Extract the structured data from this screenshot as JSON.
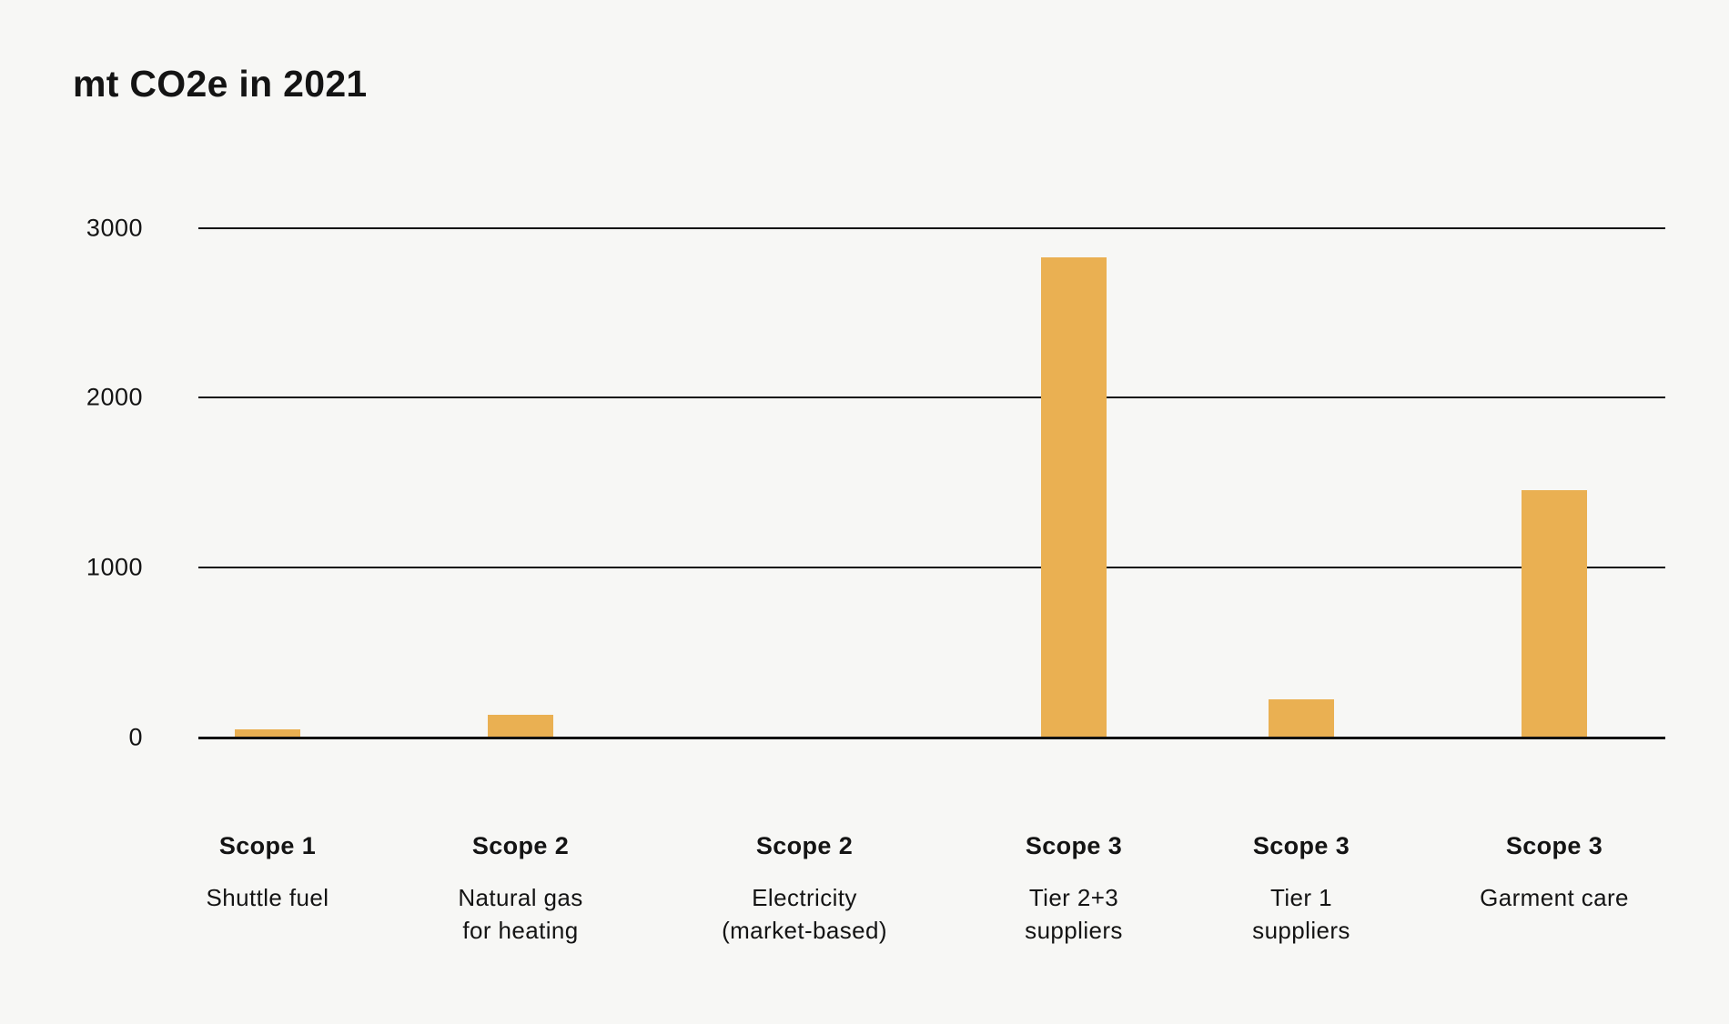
{
  "chart_data": {
    "type": "bar",
    "title": "mt CO2e in 2021",
    "unit": "mt CO2e",
    "year": "2021",
    "categories": [
      {
        "scope": "Scope 1",
        "sublabel_lines": [
          "Shuttle fuel"
        ]
      },
      {
        "scope": "Scope 2",
        "sublabel_lines": [
          "Natural gas",
          "for heating"
        ]
      },
      {
        "scope": "Scope 2",
        "sublabel_lines": [
          "Electricity",
          "(market-based)"
        ]
      },
      {
        "scope": "Scope 3",
        "sublabel_lines": [
          "Tier 2+3",
          "suppliers"
        ]
      },
      {
        "scope": "Scope 3",
        "sublabel_lines": [
          "Tier 1",
          "suppliers"
        ]
      },
      {
        "scope": "Scope 3",
        "sublabel_lines": [
          "Garment care"
        ]
      }
    ],
    "values": [
      45,
      130,
      0,
      2820,
      220,
      1450
    ],
    "y_ticks": [
      0,
      1000,
      2000,
      3000
    ],
    "y_tick_labels": [
      "0",
      "1000",
      "2000",
      "3000"
    ],
    "ylim": [
      0,
      3200
    ],
    "grid": "horizontal",
    "legend": "none",
    "colors": {
      "bar": "#EAB052",
      "background": "#F7F7F5",
      "text": "#141414",
      "gridline": "#121212"
    }
  }
}
